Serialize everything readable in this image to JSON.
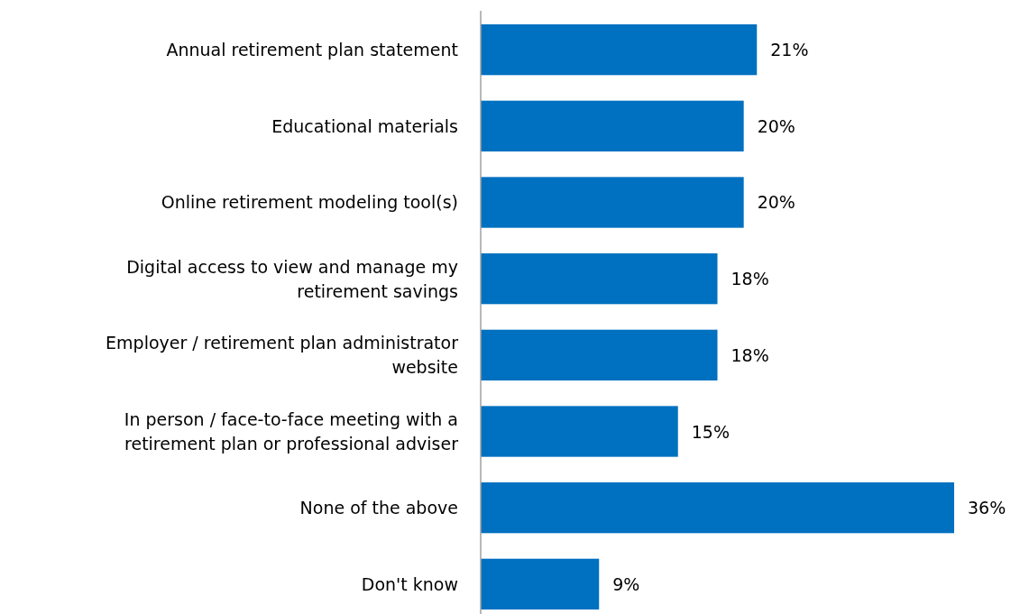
{
  "chart_data": {
    "type": "bar",
    "orientation": "horizontal",
    "categories": [
      "Annual retirement plan statement",
      "Educational materials",
      "Online retirement modeling tool(s)",
      "Digital access to view and manage my retirement savings",
      "Employer / retirement plan administrator website",
      "In person / face-to-face meeting with a retirement plan or professional adviser",
      "None of the above",
      "Don't know"
    ],
    "values": [
      21,
      20,
      20,
      18,
      18,
      15,
      36,
      9
    ],
    "value_labels": [
      "21%",
      "20%",
      "20%",
      "18%",
      "18%",
      "15%",
      "36%",
      "9%"
    ],
    "color": "#0070c0"
  }
}
